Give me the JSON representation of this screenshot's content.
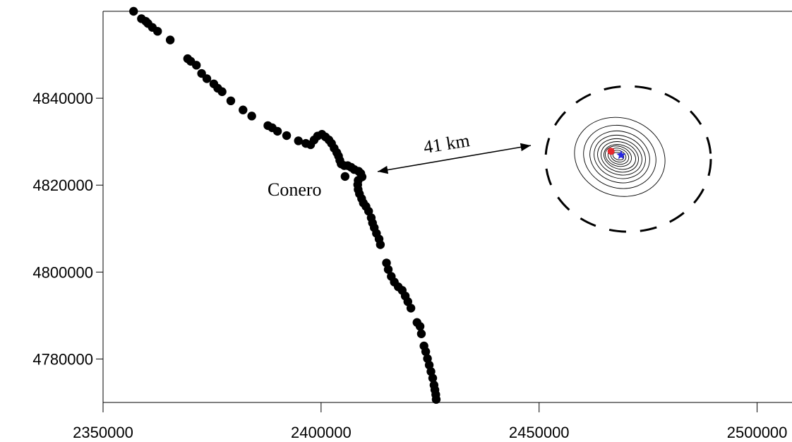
{
  "chart_data": {
    "type": "scatter",
    "title": "",
    "xlabel": "",
    "ylabel": "",
    "xlim": [
      2350000,
      2508000
    ],
    "ylim": [
      4770000,
      4860000
    ],
    "x_ticks": [
      2350000,
      2400000,
      2450000,
      2500000
    ],
    "y_ticks": [
      4780000,
      4800000,
      4820000,
      4840000
    ],
    "x_tick_labels": [
      "2350000",
      "2400000",
      "2450000",
      "2500000"
    ],
    "y_tick_labels": [
      "4780000",
      "4800000",
      "4820000",
      "4840000"
    ],
    "grid": false,
    "coastline_points": [
      [
        2357000,
        4860000
      ],
      [
        2358800,
        4858300
      ],
      [
        2359800,
        4857700
      ],
      [
        2360300,
        4857200
      ],
      [
        2361300,
        4856300
      ],
      [
        2362500,
        4855400
      ],
      [
        2365400,
        4853400
      ],
      [
        2369400,
        4849100
      ],
      [
        2370100,
        4848500
      ],
      [
        2371400,
        4847600
      ],
      [
        2372600,
        4845700
      ],
      [
        2373800,
        4844500
      ],
      [
        2375400,
        4843300
      ],
      [
        2376300,
        4842300
      ],
      [
        2377300,
        4841500
      ],
      [
        2379300,
        4839400
      ],
      [
        2382100,
        4837300
      ],
      [
        2384100,
        4835900
      ],
      [
        2387800,
        4833700
      ],
      [
        2388800,
        4833200
      ],
      [
        2390000,
        4832400
      ],
      [
        2392100,
        4831400
      ],
      [
        2394800,
        4830200
      ],
      [
        2396500,
        4829600
      ],
      [
        2397600,
        4829300
      ],
      [
        2398400,
        4830400
      ],
      [
        2399200,
        4831300
      ],
      [
        2400200,
        4831700
      ],
      [
        2401000,
        4831100
      ],
      [
        2401800,
        4830400
      ],
      [
        2402400,
        4829600
      ],
      [
        2403000,
        4828500
      ],
      [
        2403600,
        4827500
      ],
      [
        2404000,
        4826700
      ],
      [
        2404300,
        4825700
      ],
      [
        2404600,
        4824900
      ],
      [
        2405300,
        4824500
      ],
      [
        2406100,
        4824500
      ],
      [
        2406900,
        4824100
      ],
      [
        2407600,
        4823600
      ],
      [
        2408600,
        4823200
      ],
      [
        2409100,
        4822700
      ],
      [
        2409400,
        4821900
      ],
      [
        2408500,
        4821100
      ],
      [
        2408400,
        4820100
      ],
      [
        2408500,
        4819000
      ],
      [
        2408800,
        4818000
      ],
      [
        2409300,
        4816900
      ],
      [
        2409700,
        4815900
      ],
      [
        2410300,
        4815100
      ],
      [
        2410900,
        4814000
      ],
      [
        2411500,
        4812500
      ],
      [
        2411800,
        4811300
      ],
      [
        2412200,
        4810200
      ],
      [
        2412700,
        4808900
      ],
      [
        2413300,
        4807600
      ],
      [
        2413600,
        4806300
      ],
      [
        2415000,
        4802100
      ],
      [
        2415400,
        4800600
      ],
      [
        2416100,
        4799000
      ],
      [
        2416800,
        4797700
      ],
      [
        2417700,
        4796600
      ],
      [
        2418600,
        4795800
      ],
      [
        2419300,
        4794500
      ],
      [
        2419900,
        4793200
      ],
      [
        2420600,
        4791700
      ],
      [
        2422000,
        4788400
      ],
      [
        2422700,
        4787500
      ],
      [
        2423000,
        4785800
      ],
      [
        2423600,
        4783000
      ],
      [
        2424000,
        4781700
      ],
      [
        2424400,
        4780100
      ],
      [
        2424800,
        4778600
      ],
      [
        2425200,
        4777100
      ],
      [
        2425600,
        4775600
      ],
      [
        2425900,
        4774000
      ],
      [
        2426100,
        4772900
      ],
      [
        2426300,
        4771800
      ],
      [
        2426400,
        4770700
      ],
      [
        2405500,
        4822000
      ]
    ],
    "annotations": {
      "coast_label": "Conero",
      "distance_label": "41 km"
    },
    "contour_center": [
      2468500,
      4826500
    ],
    "markers": [
      {
        "shape": "circle",
        "x": 2466500,
        "y": 4827800,
        "color": "#e8282d"
      },
      {
        "shape": "star",
        "x": 2468800,
        "y": 4826900,
        "color": "#2727e0"
      }
    ],
    "colors": {
      "axis": "#000000",
      "points": "#000000",
      "contour": "#000000"
    }
  }
}
